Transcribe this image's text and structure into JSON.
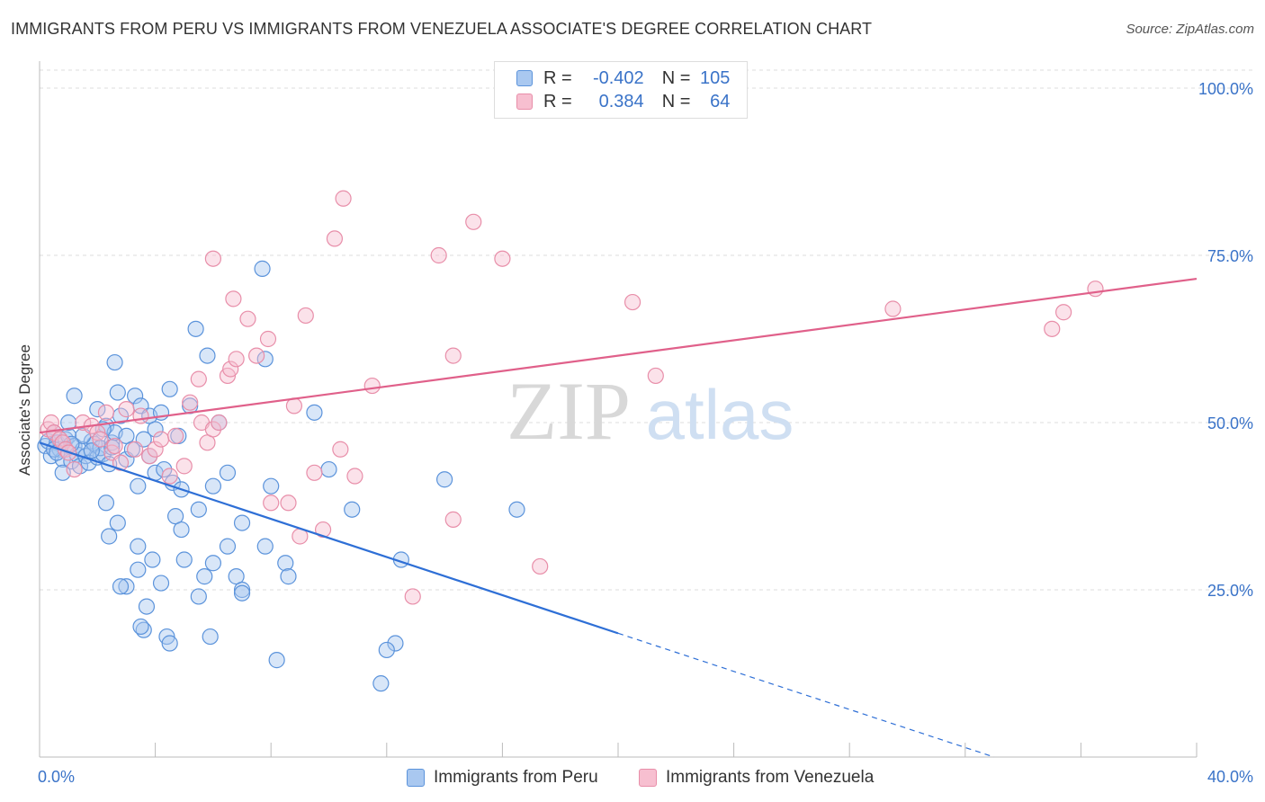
{
  "header": {
    "title": "IMMIGRANTS FROM PERU VS IMMIGRANTS FROM VENEZUELA ASSOCIATE'S DEGREE CORRELATION CHART",
    "source": "Source: ZipAtlas.com"
  },
  "watermark": {
    "zip": "ZIP",
    "atlas": "atlas"
  },
  "legend": {
    "rows": [
      {
        "r_label": "R =",
        "r_value": "-0.402",
        "n_label": "N =",
        "n_value": "105"
      },
      {
        "r_label": "R =",
        "r_value": "0.384",
        "n_label": "N =",
        "n_value": "64"
      }
    ]
  },
  "colors": {
    "peru_fill": "#a9c8f0",
    "peru_stroke": "#5b93db",
    "peru_line": "#2e6fd6",
    "ven_fill": "#f7bfd0",
    "ven_stroke": "#e88ea9",
    "ven_line": "#e0608a",
    "tick_label": "#3a73c8",
    "grid": "#dddddd"
  },
  "chart_data": {
    "type": "scatter",
    "title": "IMMIGRANTS FROM PERU VS IMMIGRANTS FROM VENEZUELA ASSOCIATE'S DEGREE CORRELATION CHART",
    "xlabel": "",
    "ylabel": "Associate's Degree",
    "xlim": [
      0,
      40
    ],
    "ylim": [
      0,
      100
    ],
    "x_tick_labels": [
      "0.0%",
      "40.0%"
    ],
    "y_ticks": [
      25,
      50,
      75,
      100
    ],
    "y_tick_labels": [
      "25.0%",
      "50.0%",
      "75.0%",
      "100.0%"
    ],
    "series": [
      {
        "name": "Immigrants from Peru",
        "r": -0.402,
        "n": 105,
        "trend": {
          "x0": 0,
          "y0": 47.0,
          "x1": 20,
          "y1": 18.5,
          "dashed_to_x": 33,
          "dashed_to_y": 0
        },
        "points": [
          [
            0.2,
            46.5
          ],
          [
            0.3,
            47.2
          ],
          [
            0.4,
            45.0
          ],
          [
            0.5,
            48.5
          ],
          [
            0.6,
            47.0
          ],
          [
            0.7,
            46.0
          ],
          [
            0.8,
            44.5
          ],
          [
            0.9,
            47.5
          ],
          [
            1.0,
            48.0
          ],
          [
            1.1,
            44.2
          ],
          [
            1.2,
            46.5
          ],
          [
            1.3,
            45.2
          ],
          [
            1.4,
            43.5
          ],
          [
            1.5,
            46.0
          ],
          [
            1.6,
            45.0
          ],
          [
            1.7,
            44.0
          ],
          [
            1.8,
            47.2
          ],
          [
            1.9,
            46.8
          ],
          [
            2.0,
            44.8
          ],
          [
            2.1,
            46.2
          ],
          [
            2.2,
            45.3
          ],
          [
            2.3,
            49.5
          ],
          [
            2.4,
            43.8
          ],
          [
            2.5,
            47.0
          ],
          [
            2.6,
            48.5
          ],
          [
            0.8,
            42.5
          ],
          [
            1.0,
            50.0
          ],
          [
            1.2,
            54.0
          ],
          [
            1.5,
            48.0
          ],
          [
            2.0,
            52.0
          ],
          [
            2.2,
            49.0
          ],
          [
            2.6,
            59.0
          ],
          [
            2.7,
            54.5
          ],
          [
            2.8,
            51.0
          ],
          [
            3.0,
            48.0
          ],
          [
            3.3,
            54.0
          ],
          [
            3.5,
            52.5
          ],
          [
            3.8,
            51.0
          ],
          [
            4.0,
            49.0
          ],
          [
            4.2,
            51.5
          ],
          [
            4.5,
            55.0
          ],
          [
            4.8,
            48.0
          ],
          [
            5.2,
            52.5
          ],
          [
            5.4,
            64.0
          ],
          [
            5.8,
            60.0
          ],
          [
            6.2,
            50.0
          ],
          [
            7.7,
            73.0
          ],
          [
            7.8,
            59.5
          ],
          [
            9.5,
            51.5
          ],
          [
            3.0,
            44.5
          ],
          [
            3.2,
            46.0
          ],
          [
            3.4,
            40.5
          ],
          [
            3.6,
            47.5
          ],
          [
            3.8,
            45.0
          ],
          [
            4.0,
            42.5
          ],
          [
            4.3,
            43.0
          ],
          [
            4.6,
            41.0
          ],
          [
            4.9,
            40.0
          ],
          [
            5.5,
            37.0
          ],
          [
            6.0,
            40.5
          ],
          [
            6.5,
            42.5
          ],
          [
            7.0,
            35.0
          ],
          [
            8.0,
            40.5
          ],
          [
            10.0,
            43.0
          ],
          [
            10.8,
            37.0
          ],
          [
            14.0,
            41.5
          ],
          [
            16.5,
            37.0
          ],
          [
            2.3,
            38.0
          ],
          [
            2.4,
            33.0
          ],
          [
            2.7,
            35.0
          ],
          [
            3.4,
            31.5
          ],
          [
            3.9,
            29.5
          ],
          [
            3.4,
            28.0
          ],
          [
            3.0,
            25.5
          ],
          [
            2.8,
            25.5
          ],
          [
            3.6,
            19.0
          ],
          [
            3.5,
            19.5
          ],
          [
            3.7,
            22.5
          ],
          [
            4.4,
            18.0
          ],
          [
            4.5,
            17.0
          ],
          [
            4.2,
            26.0
          ],
          [
            4.7,
            36.0
          ],
          [
            5.0,
            29.5
          ],
          [
            4.9,
            34.0
          ],
          [
            5.5,
            24.0
          ],
          [
            5.7,
            27.0
          ],
          [
            5.9,
            18.0
          ],
          [
            6.0,
            29.0
          ],
          [
            6.5,
            31.5
          ],
          [
            6.8,
            27.0
          ],
          [
            7.0,
            25.0
          ],
          [
            7.0,
            24.5
          ],
          [
            7.8,
            31.5
          ],
          [
            8.5,
            29.0
          ],
          [
            8.6,
            27.0
          ],
          [
            8.2,
            14.5
          ],
          [
            12.5,
            29.5
          ],
          [
            12.3,
            17.0
          ],
          [
            12.0,
            16.0
          ],
          [
            11.8,
            11.0
          ],
          [
            0.5,
            46.0
          ],
          [
            0.6,
            45.5
          ],
          [
            1.1,
            46.8
          ],
          [
            1.8,
            45.8
          ],
          [
            2.5,
            46.3
          ]
        ]
      },
      {
        "name": "Immigrants from Venezuela",
        "r": 0.384,
        "n": 64,
        "trend": {
          "x0": 0,
          "y0": 48.5,
          "x1": 40,
          "y1": 71.5
        },
        "points": [
          [
            0.3,
            49.0
          ],
          [
            0.4,
            50.0
          ],
          [
            0.5,
            48.5
          ],
          [
            0.7,
            47.5
          ],
          [
            0.8,
            47.0
          ],
          [
            0.9,
            46.0
          ],
          [
            1.0,
            45.5
          ],
          [
            1.2,
            43.0
          ],
          [
            1.5,
            50.0
          ],
          [
            1.8,
            49.5
          ],
          [
            2.0,
            48.5
          ],
          [
            2.1,
            47.5
          ],
          [
            2.3,
            51.5
          ],
          [
            2.5,
            45.5
          ],
          [
            2.6,
            46.5
          ],
          [
            2.8,
            44.0
          ],
          [
            3.0,
            52.0
          ],
          [
            3.3,
            46.0
          ],
          [
            3.5,
            51.0
          ],
          [
            3.8,
            45.0
          ],
          [
            4.0,
            46.0
          ],
          [
            4.2,
            47.5
          ],
          [
            4.5,
            42.0
          ],
          [
            4.7,
            48.0
          ],
          [
            5.0,
            43.5
          ],
          [
            5.2,
            53.0
          ],
          [
            5.5,
            56.5
          ],
          [
            5.6,
            50.0
          ],
          [
            5.8,
            47.0
          ],
          [
            6.0,
            49.0
          ],
          [
            6.2,
            50.0
          ],
          [
            6.5,
            57.0
          ],
          [
            6.6,
            58.0
          ],
          [
            6.8,
            59.5
          ],
          [
            7.5,
            60.0
          ],
          [
            7.2,
            65.5
          ],
          [
            7.9,
            62.5
          ],
          [
            6.0,
            74.5
          ],
          [
            6.7,
            68.5
          ],
          [
            9.2,
            66.0
          ],
          [
            10.2,
            77.5
          ],
          [
            10.5,
            83.5
          ],
          [
            13.8,
            75.0
          ],
          [
            15.0,
            80.0
          ],
          [
            16.0,
            74.5
          ],
          [
            8.8,
            52.5
          ],
          [
            9.5,
            42.5
          ],
          [
            10.4,
            46.0
          ],
          [
            10.9,
            42.0
          ],
          [
            11.5,
            55.5
          ],
          [
            14.3,
            60.0
          ],
          [
            8.0,
            38.0
          ],
          [
            8.6,
            38.0
          ],
          [
            9.0,
            33.0
          ],
          [
            9.8,
            34.0
          ],
          [
            14.3,
            35.5
          ],
          [
            17.3,
            28.5
          ],
          [
            12.9,
            24.0
          ],
          [
            20.5,
            68.0
          ],
          [
            21.3,
            57.0
          ],
          [
            29.5,
            67.0
          ],
          [
            35.0,
            64.0
          ],
          [
            35.4,
            66.5
          ],
          [
            36.5,
            70.0
          ]
        ]
      }
    ],
    "legend_placement": "top-center"
  },
  "bottom_legend": [
    {
      "label": "Immigrants from Peru"
    },
    {
      "label": "Immigrants from Venezuela"
    }
  ]
}
